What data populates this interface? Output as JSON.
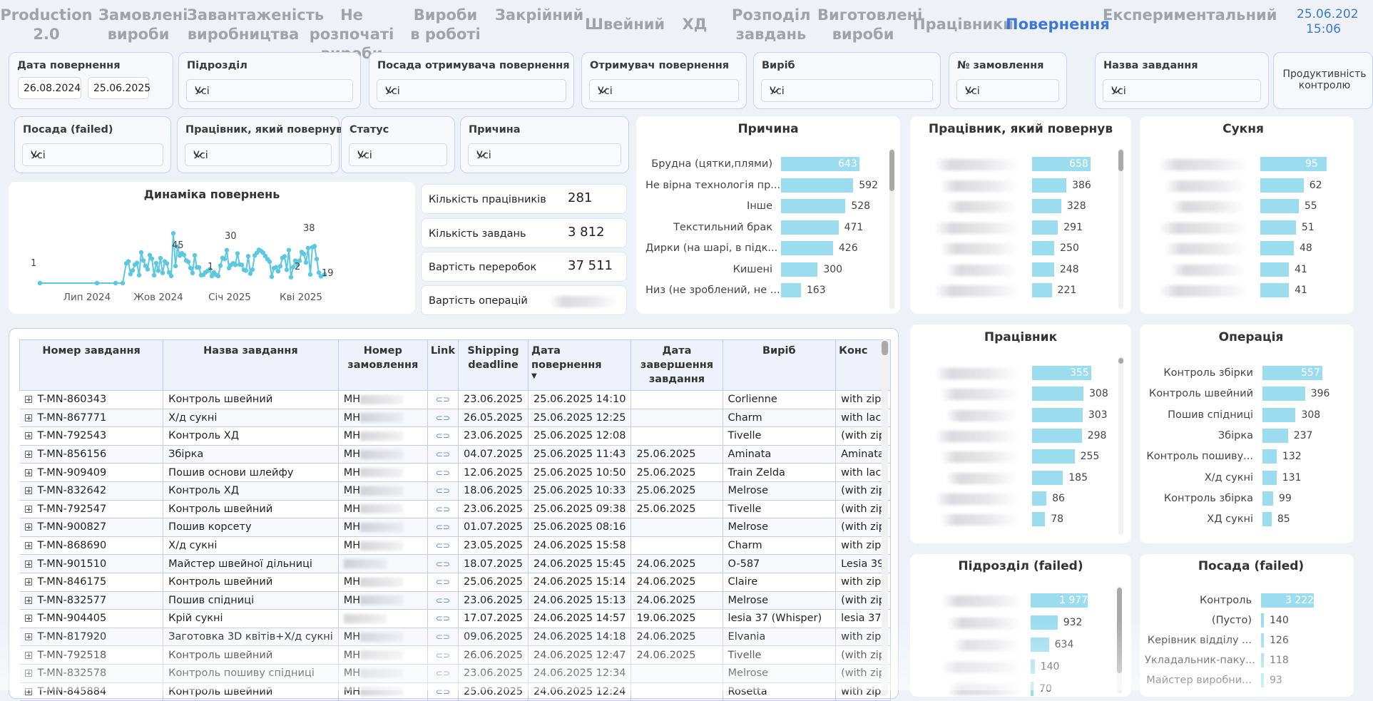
{
  "nav": {
    "tabs": [
      "Production 2.0",
      "Замовлені вироби",
      "Завантаженість виробництва",
      "Не розпочаті вироби",
      "Вироби в роботі",
      "Закрійний",
      "Швейний",
      "ХД",
      "Розподіл завдань",
      "Виготовлені вироби",
      "Працівники",
      "Повернення",
      "Експериментальний"
    ],
    "active": "Повернення",
    "date": "25.06.202",
    "time": "15:06"
  },
  "filters": {
    "date_title": "Дата повернення",
    "date_from": "26.08.2024",
    "date_to": "25.06.2025",
    "all": "Усі",
    "row1": [
      "Підрозділ",
      "Посада отримувача повернення",
      "Отримувач повернення",
      "Виріб",
      "№ замовлення",
      "Назва завдання",
      "Продуктивність контролю"
    ],
    "row2": [
      "Посада (failed)",
      "Працівник, який повернув",
      "Статус",
      "Причина"
    ]
  },
  "dynamics": {
    "title": "Динаміка повернень",
    "x_labels": [
      "Лип 2024",
      "Жов 2024",
      "Січ 2025",
      "Кві 2025"
    ],
    "point_labels": [
      "1",
      "45",
      "30",
      "1",
      "38",
      "2",
      "19"
    ]
  },
  "kpis": [
    {
      "label": "Кількість працівників",
      "value": "281"
    },
    {
      "label": "Кількість завдань",
      "value": "3 812"
    },
    {
      "label": "Вартість переробок",
      "value": "37 511"
    },
    {
      "label": "Вартість операцій",
      "value": ""
    }
  ],
  "colors": {
    "bar": "#9bdcef",
    "line": "#5ac8e0",
    "accent": "#3c78d8"
  },
  "reasons": {
    "title": "Причина",
    "items": [
      {
        "label": "Брудна (цятки,плями)",
        "value": 643
      },
      {
        "label": "Не вірна технологія пр...",
        "value": 592
      },
      {
        "label": "Інше",
        "value": 528
      },
      {
        "label": "Текстильний брак",
        "value": 471
      },
      {
        "label": "Дирки (на шарі, в підк...",
        "value": 426
      },
      {
        "label": "Кишені",
        "value": 300
      },
      {
        "label": "Низ (не зроблений, не ...",
        "value": 163
      }
    ]
  },
  "returner": {
    "title": "Працівник, який повернув",
    "values": [
      658,
      386,
      328,
      291,
      250,
      248,
      221
    ]
  },
  "dress": {
    "title": "Сукня",
    "values": [
      95,
      62,
      55,
      51,
      48,
      41,
      41
    ]
  },
  "worker": {
    "title": "Працівник",
    "values": [
      355,
      308,
      303,
      298,
      255,
      185,
      86,
      78
    ]
  },
  "operation": {
    "title": "Операція",
    "items": [
      {
        "label": "Контроль збірки",
        "value": 557
      },
      {
        "label": "Контроль швейний",
        "value": 396
      },
      {
        "label": "Пошив спідниці",
        "value": 308
      },
      {
        "label": "Збірка",
        "value": 237
      },
      {
        "label": "Контроль пошиву...",
        "value": 132
      },
      {
        "label": "Х/д сукні",
        "value": 131
      },
      {
        "label": "Контроль збірка",
        "value": 99
      },
      {
        "label": "ХД сукні",
        "value": 85
      }
    ]
  },
  "dept_failed": {
    "title": "Підрозділ (failed)",
    "values": [
      "1 977",
      "932",
      "634",
      "140",
      "70"
    ]
  },
  "pos_failed": {
    "title": "Посада (failed)",
    "items": [
      {
        "label": "Контроль",
        "value": "3 222"
      },
      {
        "label": "(Пусто)",
        "value": "140"
      },
      {
        "label": "Керівник відділу ...",
        "value": "126"
      },
      {
        "label": "Укладальник-паку...",
        "value": "118"
      },
      {
        "label": "Майстер виробни...",
        "value": "93"
      }
    ]
  },
  "table": {
    "headers": [
      "Номер завдання",
      "Назва завдання",
      "Номер замовлення",
      "Link",
      "Shipping deadline",
      "Дата повернення",
      "Дата завершення завдання",
      "Виріб",
      "Конс"
    ],
    "rows": [
      [
        "T-MN-860343",
        "Контроль швейний",
        "МН",
        "23.06.2025",
        "25.06.2025 14:10",
        "",
        "Corlienne",
        "with zip"
      ],
      [
        "T-MN-867771",
        "Х/д сукні",
        "МН",
        "26.05.2025",
        "25.06.2025 12:25",
        "",
        "Charm",
        "with lac"
      ],
      [
        "T-MN-792543",
        "Контроль ХД",
        "МН",
        "23.06.2025",
        "25.06.2025 12:08",
        "",
        "Tivelle",
        "(with zip"
      ],
      [
        "T-MN-856156",
        "Збірка",
        "МН",
        "04.07.2025",
        "25.06.2025 11:43",
        "25.06.2025",
        "Aminata",
        "Aminata"
      ],
      [
        "T-MN-909409",
        "Пошив основи шлейфу",
        "МН",
        "12.06.2025",
        "25.06.2025 10:50",
        "25.06.2025",
        "Train Zelda",
        "with lac"
      ],
      [
        "T-MN-832642",
        "Контроль ХД",
        "МН",
        "18.06.2025",
        "25.06.2025 10:33",
        "25.06.2025",
        "Melrose",
        "(with zip"
      ],
      [
        "T-MN-792547",
        "Контроль швейний",
        "МН",
        "23.06.2025",
        "25.06.2025 09:38",
        "25.06.2025",
        "Tivelle",
        "(with zip"
      ],
      [
        "T-MN-900827",
        "Пошив корсету",
        "МН",
        "01.07.2025",
        "25.06.2025 08:16",
        "",
        "Melrose",
        "(with zip"
      ],
      [
        "T-MN-868690",
        "Х/д сукні",
        "МН",
        "23.05.2025",
        "24.06.2025 15:58",
        "",
        "Charm",
        "with zip"
      ],
      [
        "T-MN-901510",
        "Майстер швейної дільниці",
        "",
        "18.07.2025",
        "24.06.2025 15:45",
        "24.06.2025",
        "O-587",
        "Lesia 39"
      ],
      [
        "T-MN-846175",
        "Контроль швейний",
        "МН",
        "25.06.2025",
        "24.06.2025 15:14",
        "24.06.2025",
        "Claire",
        "with zip"
      ],
      [
        "T-MN-832577",
        "Пошив спідниці",
        "МН",
        "23.06.2025",
        "24.06.2025 15:13",
        "24.06.2025",
        "Melrose",
        "(with zip"
      ],
      [
        "T-MN-904405",
        "Крій сукні",
        "",
        "17.07.2025",
        "24.06.2025 14:57",
        "19.06.2025",
        "lesia 37 (Whisper)",
        "lesia 37"
      ],
      [
        "T-MN-817920",
        "Заготовка 3D квітів+Х/д сукні",
        "МН",
        "09.06.2025",
        "24.06.2025 14:18",
        "24.06.2025",
        "Elvania",
        "with zip"
      ],
      [
        "T-MN-792518",
        "Контроль швейний",
        "МН",
        "26.06.2025",
        "24.06.2025 12:47",
        "24.06.2025",
        "Tivelle",
        "(with zip"
      ],
      [
        "T-MN-832578",
        "Контроль пошиву спідниці",
        "МН",
        "23.06.2025",
        "24.06.2025 12:34",
        "",
        "Melrose",
        "(with zip"
      ],
      [
        "T-MN-845884",
        "Контроль швейний",
        "МН",
        "25.06.2025",
        "24.06.2025 12:24",
        "",
        "Rosetta",
        "with zip"
      ]
    ]
  }
}
